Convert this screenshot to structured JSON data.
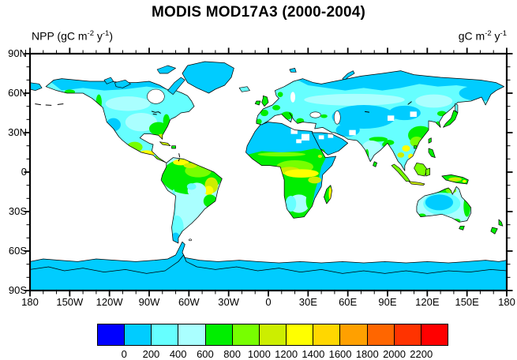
{
  "title": "MODIS MOD17A3 (2000-2004)",
  "units_left": {
    "prefix": "NPP (gC m",
    "sup1": "-2",
    "mid": " y",
    "sup2": "-1",
    "suffix": ")"
  },
  "units_right": {
    "prefix": "gC m",
    "sup1": "-2",
    "mid": " y",
    "sup2": "-1",
    "suffix": ""
  },
  "map": {
    "y_axis_labels": [
      "90N",
      "60N",
      "30N",
      "0",
      "30S",
      "60S",
      "90S"
    ],
    "x_axis_labels": [
      "180",
      "150W",
      "120W",
      "90W",
      "60W",
      "30W",
      "0",
      "30E",
      "60E",
      "90E",
      "120E",
      "150E",
      "180"
    ],
    "major_tick_interval_deg": 30,
    "minor_tick_interval_deg": 10,
    "ocean_color": "#FFFFFF"
  },
  "colorbar": {
    "labels": [
      "0",
      "200",
      "400",
      "600",
      "800",
      "1000",
      "1200",
      "1400",
      "1600",
      "1800",
      "2000",
      "2200"
    ],
    "colors": [
      "#0000FF",
      "#00CCFF",
      "#66FFFF",
      "#AAFFFF",
      "#00EE00",
      "#77FF00",
      "#CCEE00",
      "#FFFF00",
      "#FFD700",
      "#FFA000",
      "#FF6600",
      "#FF3300",
      "#FF0000"
    ]
  },
  "chart_data": {
    "type": "heatmap",
    "subtype": "filled-contour global map",
    "title": "MODIS MOD17A3 (2000-2004)",
    "variable": "NPP",
    "units": "gC m-2 y-1",
    "projection": "equirectangular",
    "lon_range": [
      -180,
      180
    ],
    "lat_range": [
      -90,
      90
    ],
    "contour_levels": [
      0,
      200,
      400,
      600,
      800,
      1000,
      1200,
      1400,
      1600,
      1800,
      2000,
      2200
    ],
    "palette": [
      "#0000FF",
      "#00CCFF",
      "#66FFFF",
      "#AAFFFF",
      "#00EE00",
      "#77FF00",
      "#CCEE00",
      "#FFFF00",
      "#FFD700",
      "#FFA000",
      "#FF6600",
      "#FF3300",
      "#FF0000"
    ],
    "legend_position": "bottom",
    "grid": false,
    "region_values": [
      {
        "region": "Greenland, Canadian Arctic islands, Arctic coast of Siberia",
        "npp_gC_m2_y": "0-200"
      },
      {
        "region": "Antarctica (coastal band shown)",
        "npp_gC_m2_y": "0-200"
      },
      {
        "region": "Sahara, Arabian Peninsula, Iran, Gobi/Taklamakan, Tibet",
        "npp_gC_m2_y": "0-200"
      },
      {
        "region": "Australian interior, Patagonia, Horn of Africa",
        "npp_gC_m2_y": "0-200"
      },
      {
        "region": "Boreal Canada, Scandinavia, Siberia mid-latitudes",
        "npp_gC_m2_y": "200-400"
      },
      {
        "region": "Central North America, central Russia band, India interior, Kalahari",
        "npp_gC_m2_y": "400-600"
      },
      {
        "region": "Southeastern US, Europe, Southeast China, Japan, New Zealand, SE Brazil",
        "npp_gC_m2_y": "600-800"
      },
      {
        "region": "Sahel margin, Mexico south, Indochina, tropical savanna belts",
        "npp_gC_m2_y": "800-1200"
      },
      {
        "region": "Amazon and Congo basins, Central America, Indonesia, New Guinea, Madagascar",
        "npp_gC_m2_y": "1000-1400"
      },
      {
        "region": "Small coastal spots (e.g. east Australia coast)",
        "npp_gC_m2_y": "1600-2000"
      },
      {
        "region": "White cells over central Sahara, Arabia, Iran, Taklamakan (missing data)",
        "npp_gC_m2_y": "no data"
      },
      {
        "region": "Ocean",
        "npp_gC_m2_y": "not shown (white)"
      }
    ]
  }
}
